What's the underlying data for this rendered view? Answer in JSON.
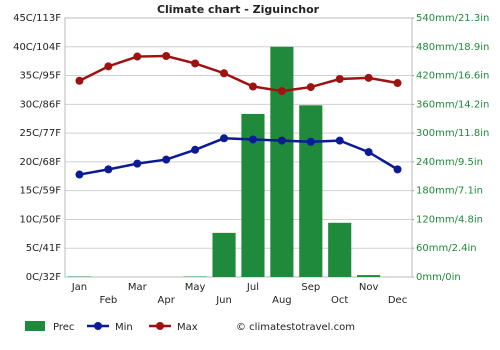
{
  "chart_data": {
    "type": "combo",
    "title": "Climate chart - Ziguinchor",
    "categories": [
      "Jan",
      "Feb",
      "Mar",
      "Apr",
      "May",
      "Jun",
      "Jul",
      "Aug",
      "Sep",
      "Oct",
      "Nov",
      "Dec"
    ],
    "series": [
      {
        "name": "Prec",
        "type": "bar",
        "axis": "y2",
        "color": "#1f8a3b",
        "values": [
          1,
          0,
          0,
          0,
          1,
          92,
          340,
          480,
          358,
          113,
          4,
          0
        ]
      },
      {
        "name": "Min",
        "type": "line",
        "color": "#0b1a96",
        "values": [
          17.8,
          18.7,
          19.7,
          20.4,
          22.1,
          24.1,
          23.9,
          23.7,
          23.5,
          23.7,
          21.7,
          18.7
        ]
      },
      {
        "name": "Max",
        "type": "line",
        "color": "#9e1212",
        "values": [
          34.1,
          36.6,
          38.3,
          38.4,
          37.1,
          35.4,
          33.1,
          32.3,
          33.0,
          34.4,
          34.6,
          33.7
        ]
      }
    ],
    "ylim": [
      0,
      45
    ],
    "yticks": [
      {
        "value": 0,
        "label": "0C/32F"
      },
      {
        "value": 5,
        "label": "5C/41F"
      },
      {
        "value": 10,
        "label": "10C/50F"
      },
      {
        "value": 15,
        "label": "15C/59F"
      },
      {
        "value": 20,
        "label": "20C/68F"
      },
      {
        "value": 25,
        "label": "25C/77F"
      },
      {
        "value": 30,
        "label": "30C/86F"
      },
      {
        "value": 35,
        "label": "35C/95F"
      },
      {
        "value": 40,
        "label": "40C/104F"
      },
      {
        "value": 45,
        "label": "45C/113F"
      }
    ],
    "y2lim": [
      0,
      540
    ],
    "y2ticks": [
      {
        "value": 0,
        "label": "0mm/0in"
      },
      {
        "value": 60,
        "label": "60mm/2.4in"
      },
      {
        "value": 120,
        "label": "120mm/4.8in"
      },
      {
        "value": 180,
        "label": "180mm/7.1in"
      },
      {
        "value": 240,
        "label": "240mm/9.5in"
      },
      {
        "value": 300,
        "label": "300mm/11.8in"
      },
      {
        "value": 360,
        "label": "360mm/14.2in"
      },
      {
        "value": 420,
        "label": "420mm/16.6in"
      },
      {
        "value": 480,
        "label": "480mm/18.9in"
      },
      {
        "value": 540,
        "label": "540mm/21.3in"
      }
    ],
    "grid": true,
    "credit": "© climatestotravel.com"
  }
}
